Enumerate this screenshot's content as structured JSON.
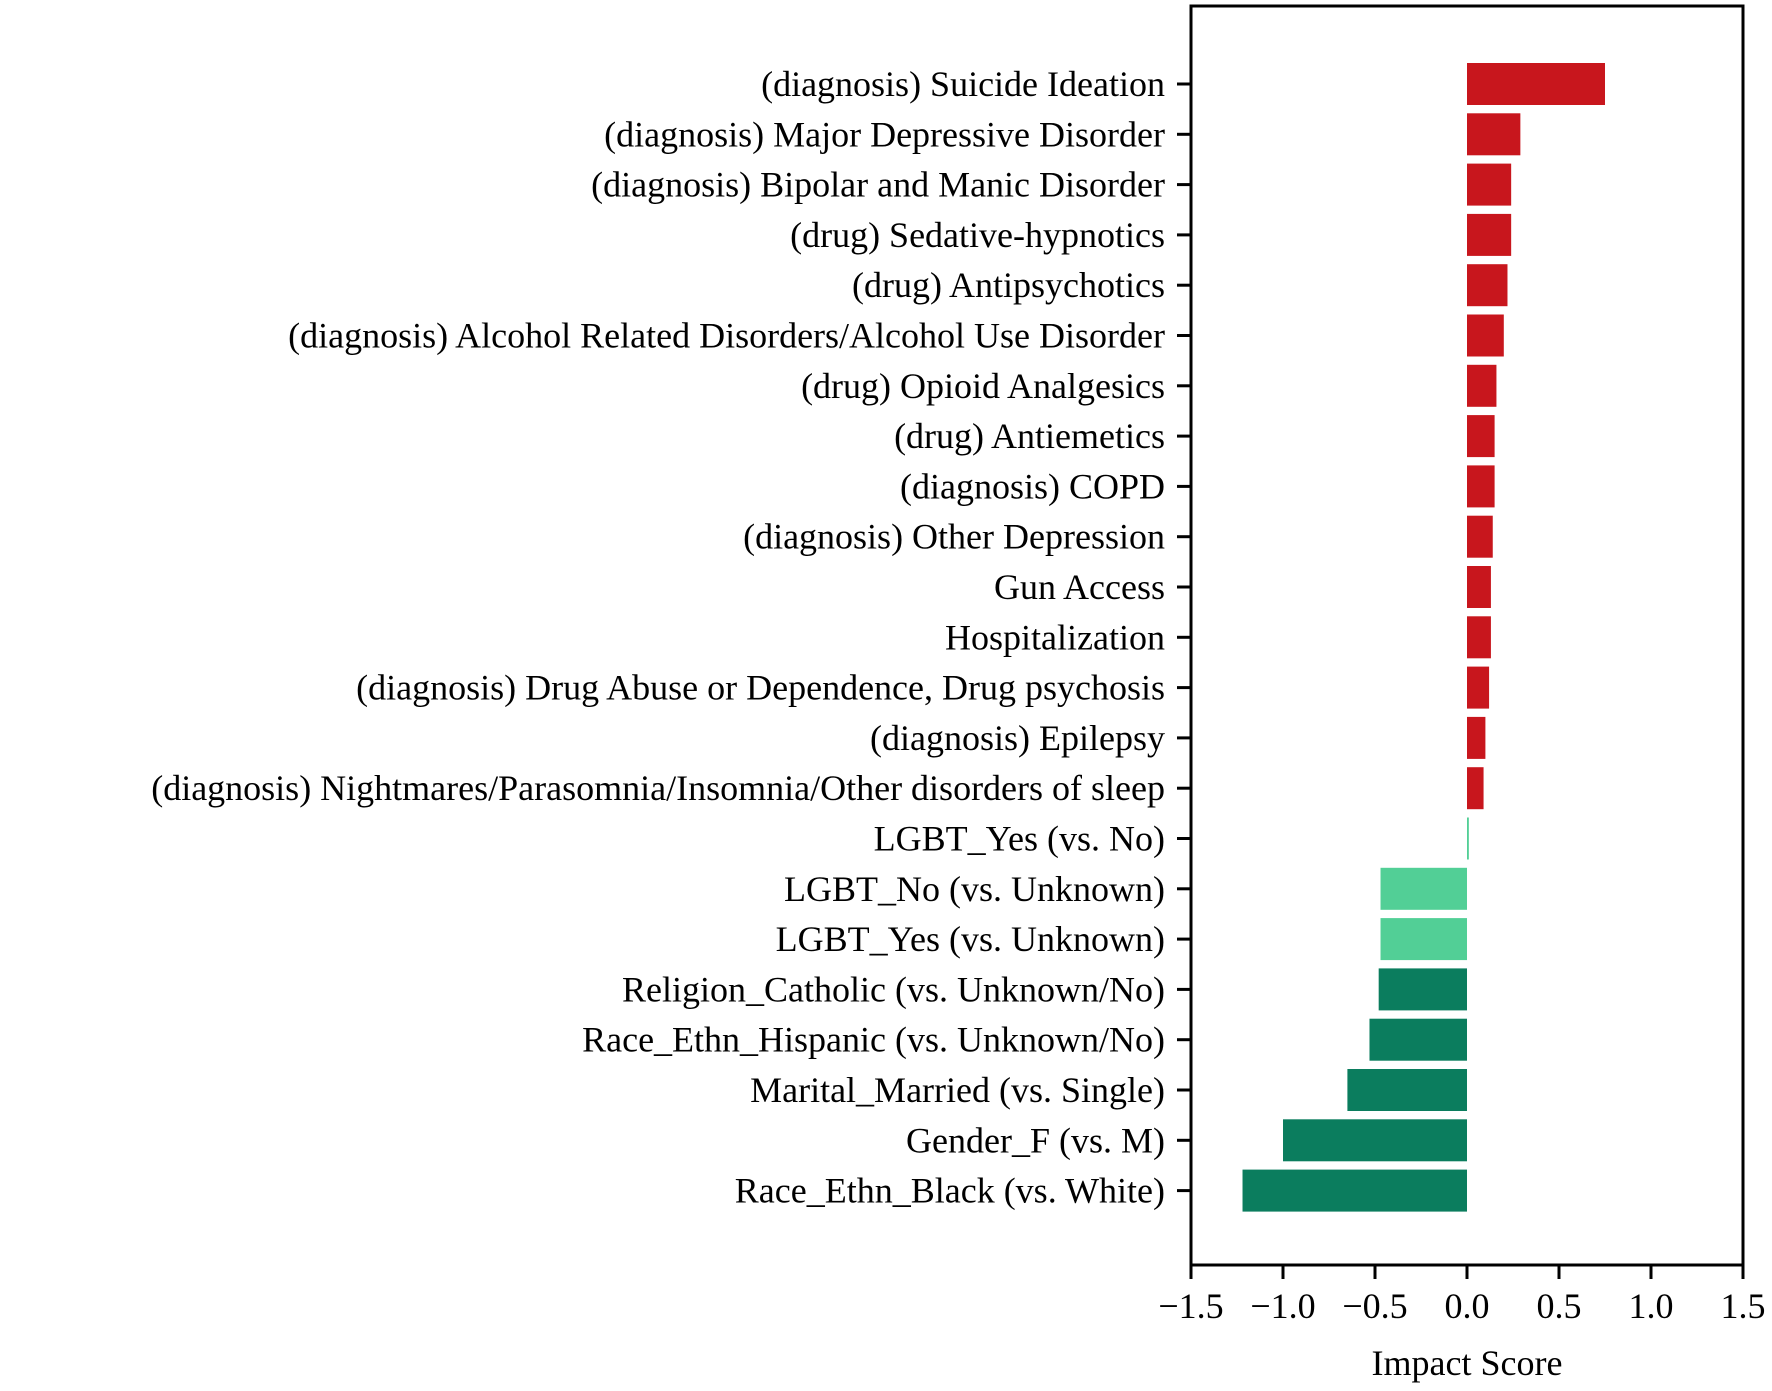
{
  "chart_data": {
    "type": "bar",
    "orientation": "horizontal",
    "xlabel": "Impact Score",
    "ylabel": "",
    "title": "",
    "xlim": [
      -1.5,
      1.5
    ],
    "xticks": [
      -1.5,
      -1.0,
      -0.5,
      0.0,
      0.5,
      1.0,
      1.5
    ],
    "xtick_labels": [
      "−1.5",
      "−1.0",
      "−0.5",
      "0.0",
      "0.5",
      "1.0",
      "1.5"
    ],
    "grid": false,
    "categories": [
      "(diagnosis) Suicide Ideation",
      "(diagnosis) Major Depressive Disorder",
      "(diagnosis) Bipolar and Manic Disorder",
      "(drug) Sedative-hypnotics",
      "(drug) Antipsychotics",
      "(diagnosis) Alcohol Related Disorders/Alcohol Use Disorder",
      "(drug) Opioid Analgesics",
      "(drug) Antiemetics",
      "(diagnosis) COPD",
      "(diagnosis) Other Depression",
      "Gun Access",
      "Hospitalization",
      "(diagnosis) Drug Abuse or Dependence, Drug psychosis",
      "(diagnosis) Epilepsy",
      "(diagnosis) Nightmares/Parasomnia/Insomnia/Other disorders of sleep",
      "LGBT_Yes (vs. No)",
      "LGBT_No (vs. Unknown)",
      "LGBT_Yes (vs. Unknown)",
      "Religion_Catholic (vs. Unknown/No)",
      "Race_Ethn_Hispanic (vs. Unknown/No)",
      "Marital_Married (vs. Single)",
      "Gender_F (vs. M)",
      "Race_Ethn_Black (vs. White)"
    ],
    "values": [
      0.75,
      0.29,
      0.24,
      0.24,
      0.22,
      0.2,
      0.16,
      0.15,
      0.15,
      0.14,
      0.13,
      0.13,
      0.12,
      0.1,
      0.09,
      0.01,
      -0.47,
      -0.47,
      -0.48,
      -0.53,
      -0.65,
      -1.0,
      -1.22
    ],
    "bar_colors": [
      "#c8161d",
      "#c8161d",
      "#c8161d",
      "#c8161d",
      "#c8161d",
      "#c8161d",
      "#c8161d",
      "#c8161d",
      "#c8161d",
      "#c8161d",
      "#c8161d",
      "#c8161d",
      "#c8161d",
      "#c8161d",
      "#c8161d",
      "#52cf96",
      "#52cf96",
      "#52cf96",
      "#0b7d5e",
      "#0b7d5e",
      "#0b7d5e",
      "#0b7d5e",
      "#0b7d5e"
    ]
  }
}
